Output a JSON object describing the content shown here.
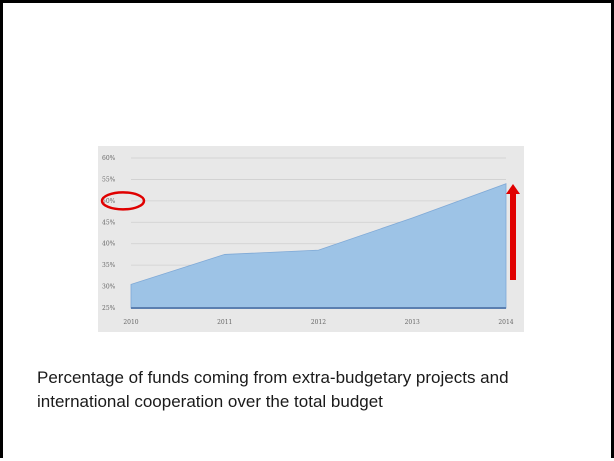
{
  "caption": "Percentage of funds coming from extra-budgetary projects and international cooperation over the total budget",
  "chart_data": {
    "type": "area",
    "x": [
      "2010",
      "2011",
      "2012",
      "2013",
      "2014"
    ],
    "values": [
      30.5,
      37.5,
      38.5,
      46,
      54
    ],
    "ylim": [
      25,
      60
    ],
    "yticks": [
      "25%",
      "30%",
      "35%",
      "40%",
      "45%",
      "50%",
      "55%",
      "60%"
    ],
    "grid": true,
    "area_color": "#9dc3e6",
    "background_color": "#e8e8e8",
    "annotations": {
      "circle_on_tick": "50%",
      "up_arrow": true,
      "annotation_color": "#e00000"
    }
  }
}
